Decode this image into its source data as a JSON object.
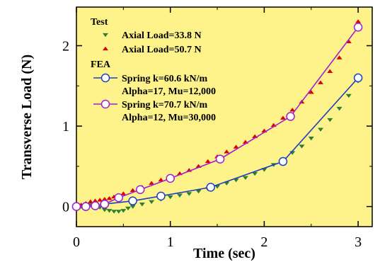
{
  "chart_data": {
    "type": "scatter",
    "xlabel": "Time (sec)",
    "ylabel": "Transverse Load (N)",
    "xlim": [
      0,
      3.15
    ],
    "ylim": [
      -0.25,
      2.48
    ],
    "x_ticks": [
      0,
      1,
      2,
      3
    ],
    "y_ticks": [
      0,
      1,
      2
    ],
    "x_tick_labels": [
      "0",
      "1",
      "2",
      "3"
    ],
    "y_tick_labels": [
      "0",
      "1",
      "2"
    ],
    "plot_background": "#fdf38a",
    "legend": {
      "position": "top-left",
      "test_header": "Test",
      "fea_header": "FEA",
      "entries": [
        {
          "label": "Axial Load=33.8 N",
          "marker": "triangle-down",
          "color": "#2e7d32"
        },
        {
          "label": "Axial Load=50.7 N",
          "marker": "triangle-up",
          "color": "#e00000"
        },
        {
          "label": "Spring k=60.6 kN/m",
          "label2": "Alpha=17, Mu=12,000",
          "marker": "circle-line",
          "color": "#1f3fbf"
        },
        {
          "label": "Spring k=70.7 kN/m",
          "label2": "Alpha=12, Mu=30,000",
          "marker": "circle-line",
          "color": "#a020d0"
        }
      ]
    },
    "series": [
      {
        "name": "Axial Load=33.8 N",
        "group": "Test",
        "marker": "triangle-down",
        "color": "#2e7d32",
        "x": [
          0.05,
          0.1,
          0.15,
          0.2,
          0.25,
          0.3,
          0.35,
          0.4,
          0.45,
          0.5,
          0.55,
          0.6,
          0.7,
          0.8,
          0.9,
          1.0,
          1.1,
          1.2,
          1.3,
          1.4,
          1.5,
          1.6,
          1.7,
          1.8,
          1.9,
          2.0,
          2.1,
          2.2,
          2.3,
          2.4,
          2.5,
          2.6,
          2.7,
          2.8,
          2.9,
          3.0
        ],
        "y": [
          0.0,
          0.0,
          0.02,
          0.0,
          -0.01,
          -0.04,
          -0.05,
          -0.06,
          -0.06,
          -0.05,
          -0.02,
          0.0,
          0.03,
          0.06,
          0.09,
          0.12,
          0.14,
          0.16,
          0.19,
          0.22,
          0.25,
          0.29,
          0.33,
          0.36,
          0.41,
          0.46,
          0.52,
          0.59,
          0.67,
          0.75,
          0.85,
          0.96,
          1.08,
          1.22,
          1.38,
          1.56
        ]
      },
      {
        "name": "Axial Load=50.7 N",
        "group": "Test",
        "marker": "triangle-up",
        "color": "#e00000",
        "x": [
          0.05,
          0.1,
          0.15,
          0.2,
          0.25,
          0.3,
          0.35,
          0.4,
          0.45,
          0.5,
          0.6,
          0.7,
          0.8,
          0.9,
          1.0,
          1.1,
          1.2,
          1.3,
          1.4,
          1.5,
          1.6,
          1.7,
          1.8,
          1.9,
          2.0,
          2.1,
          2.2,
          2.3,
          2.4,
          2.5,
          2.6,
          2.7,
          2.8,
          2.9,
          3.0
        ],
        "y": [
          0.02,
          0.04,
          0.06,
          0.07,
          0.08,
          0.09,
          0.1,
          0.12,
          0.14,
          0.16,
          0.2,
          0.24,
          0.29,
          0.33,
          0.37,
          0.41,
          0.45,
          0.5,
          0.56,
          0.62,
          0.68,
          0.74,
          0.8,
          0.87,
          0.94,
          1.01,
          1.1,
          1.2,
          1.3,
          1.42,
          1.54,
          1.68,
          1.85,
          2.05,
          2.3
        ]
      },
      {
        "name": "Spring k=60.6 kN/m",
        "name_line2": "Alpha=17, Mu=12,000",
        "group": "FEA",
        "marker": "circle-line",
        "color": "#1f3fbf",
        "x": [
          0.0,
          0.1,
          0.2,
          0.3,
          0.6,
          0.9,
          1.43,
          2.2,
          3.0
        ],
        "y": [
          0.0,
          0.0,
          0.01,
          0.03,
          0.07,
          0.13,
          0.24,
          0.56,
          1.6
        ]
      },
      {
        "name": "Spring k=70.7 kN/m",
        "name_line2": "Alpha=12, Mu=30,000",
        "group": "FEA",
        "marker": "circle-line",
        "color": "#a020d0",
        "x": [
          0.0,
          0.1,
          0.2,
          0.3,
          0.45,
          0.68,
          1.0,
          1.53,
          2.28,
          3.0
        ],
        "y": [
          0.0,
          0.0,
          0.01,
          0.03,
          0.11,
          0.21,
          0.35,
          0.59,
          1.12,
          2.23
        ]
      }
    ]
  }
}
